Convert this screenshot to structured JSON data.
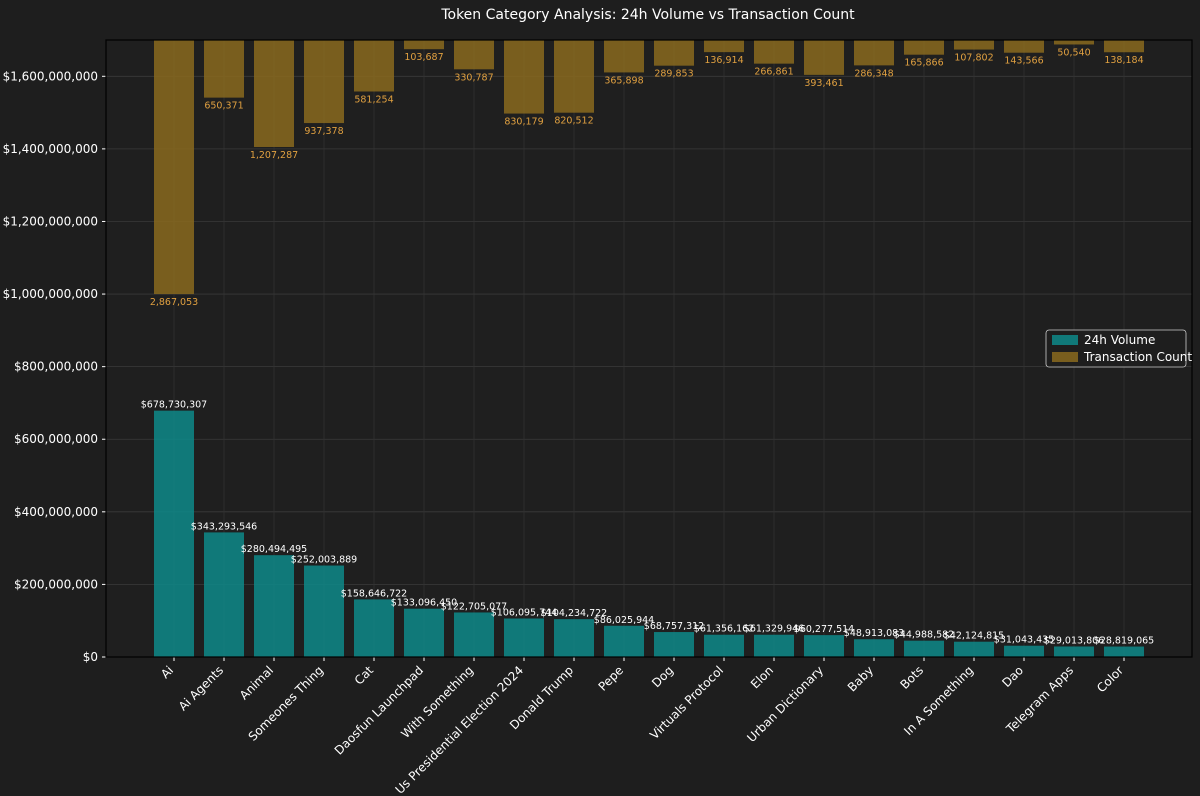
{
  "chart_data": {
    "type": "bar",
    "title": "Token Category Analysis: 24h Volume vs Transaction Count",
    "xlabel": "",
    "ylabel": "",
    "ylim": [
      0,
      1700000000
    ],
    "yticks": [
      0,
      200000000,
      400000000,
      600000000,
      800000000,
      1000000000,
      1200000000,
      1400000000,
      1600000000
    ],
    "ytick_labels": [
      "$0",
      "$200,000,000",
      "$400,000,000",
      "$600,000,000",
      "$800,000,000",
      "$1,000,000,000",
      "$1,200,000,000",
      "$1,400,000,000",
      "$1,600,000,000"
    ],
    "grid": true,
    "legend_position": "center-right",
    "categories": [
      "Ai",
      "Ai Agents",
      "Animal",
      "Someones Thing",
      "Cat",
      "Daosfun Launchpad",
      "With Something",
      "Us Presidential Election 2024",
      "Donald Trump",
      "Pepe",
      "Dog",
      "Virtuals Protocol",
      "Elon",
      "Urban Dictionary",
      "Baby",
      "Bots",
      "In A Something",
      "Dao",
      "Telegram Apps",
      "Color"
    ],
    "series": [
      {
        "name": "24h Volume",
        "color": "#0e8a8a",
        "values": [
          678730307,
          343293546,
          280494495,
          252003889,
          158646722,
          133096450,
          122705077,
          106095744,
          104234722,
          86025944,
          68757312,
          61356162,
          61329946,
          60277514,
          48913083,
          44988582,
          42124815,
          31043435,
          29013806,
          28819065
        ],
        "labels": [
          "$678,730,307",
          "$343,293,546",
          "$280,494,495",
          "$252,003,889",
          "$158,646,722",
          "$133,096,450",
          "$122,705,077",
          "$106,095,744",
          "$104,234,722",
          "$86,025,944",
          "$68,757,312",
          "$61,356,162",
          "$61,329,946",
          "$60,277,514",
          "$48,913,083",
          "$44,988,582",
          "$42,124,815",
          "$31,043,435",
          "$29,013,806",
          "$28,819,065"
        ]
      },
      {
        "name": "Transaction Count",
        "color": "#8a6a1e",
        "values": [
          2867053,
          650371,
          1207287,
          937378,
          581254,
          103687,
          330787,
          830179,
          820512,
          365898,
          289853,
          136914,
          266861,
          393461,
          286348,
          165866,
          107802,
          143566,
          50540,
          138184
        ],
        "labels": [
          "2,867,053",
          "650,371",
          "1,207,287",
          "937,378",
          "581,254",
          "103,687",
          "330,787",
          "830,179",
          "820,512",
          "365,898",
          "289,853",
          "136,914",
          "266,861",
          "393,461",
          "286,348",
          "165,866",
          "107,802",
          "143,566",
          "50,540",
          "138,184"
        ]
      }
    ]
  }
}
